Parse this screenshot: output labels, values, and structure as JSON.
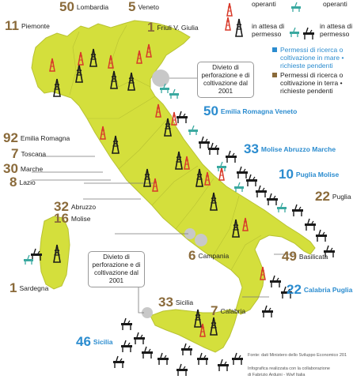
{
  "legend": {
    "operanti_a": "operanti",
    "operanti_b": "operanti",
    "attesa_a": "in attesa di permesso",
    "attesa_b": "in attesa di permesso",
    "mare": "Permessi di ricerca o coltivazione in mare • richieste pendenti",
    "terra": "Permessi di ricerca o coltivazione in terra • richieste pendenti"
  },
  "notes": {
    "venezia": "Divieto di perforazione e di coltivazione dal 2001",
    "napoli": "Divieto di perforazione e di coltivazione dal 2001"
  },
  "land": [
    {
      "num": "11",
      "name": "Piemonte"
    },
    {
      "num": "50",
      "name": "Lombardia"
    },
    {
      "num": "5",
      "name": "Veneto"
    },
    {
      "num": "1",
      "name": "Friuli V. Giulia"
    },
    {
      "num": "92",
      "name": "Emilia Romagna"
    },
    {
      "num": "7",
      "name": "Toscana"
    },
    {
      "num": "30",
      "name": "Marche"
    },
    {
      "num": "8",
      "name": "Lazio"
    },
    {
      "num": "32",
      "name": "Abruzzo"
    },
    {
      "num": "16",
      "name": "Molise"
    },
    {
      "num": "22",
      "name": "Puglia"
    },
    {
      "num": "6",
      "name": "Campania"
    },
    {
      "num": "49",
      "name": "Basilicata"
    },
    {
      "num": "7",
      "name": "Calabria"
    },
    {
      "num": "33",
      "name": "Sicilia"
    },
    {
      "num": "1",
      "name": "Sardegna"
    }
  ],
  "sea": [
    {
      "num": "50",
      "name": "Emilia Romagna Veneto"
    },
    {
      "num": "33",
      "name": "Molise Abruzzo Marche"
    },
    {
      "num": "10",
      "name": "Puglia Molise"
    },
    {
      "num": "22",
      "name": "Calabria Puglia"
    },
    {
      "num": "46",
      "name": "Sicilia"
    }
  ],
  "footer": {
    "fonte": "Fonte: dati Ministero dello Sviluppo Economico 201",
    "credit1": "Infografica realizzata con la collaborazione",
    "credit2": "di Fabrizio Arduini - Wwf Italia"
  },
  "colors": {
    "land": "#d4df3c",
    "land_border": "#b8c232",
    "brown": "#8a6a3a",
    "blue": "#2b8ccf",
    "rig_red": "#d83a2a",
    "rig_black": "#1a1a1a",
    "protected_area": "#c8c8c8"
  }
}
